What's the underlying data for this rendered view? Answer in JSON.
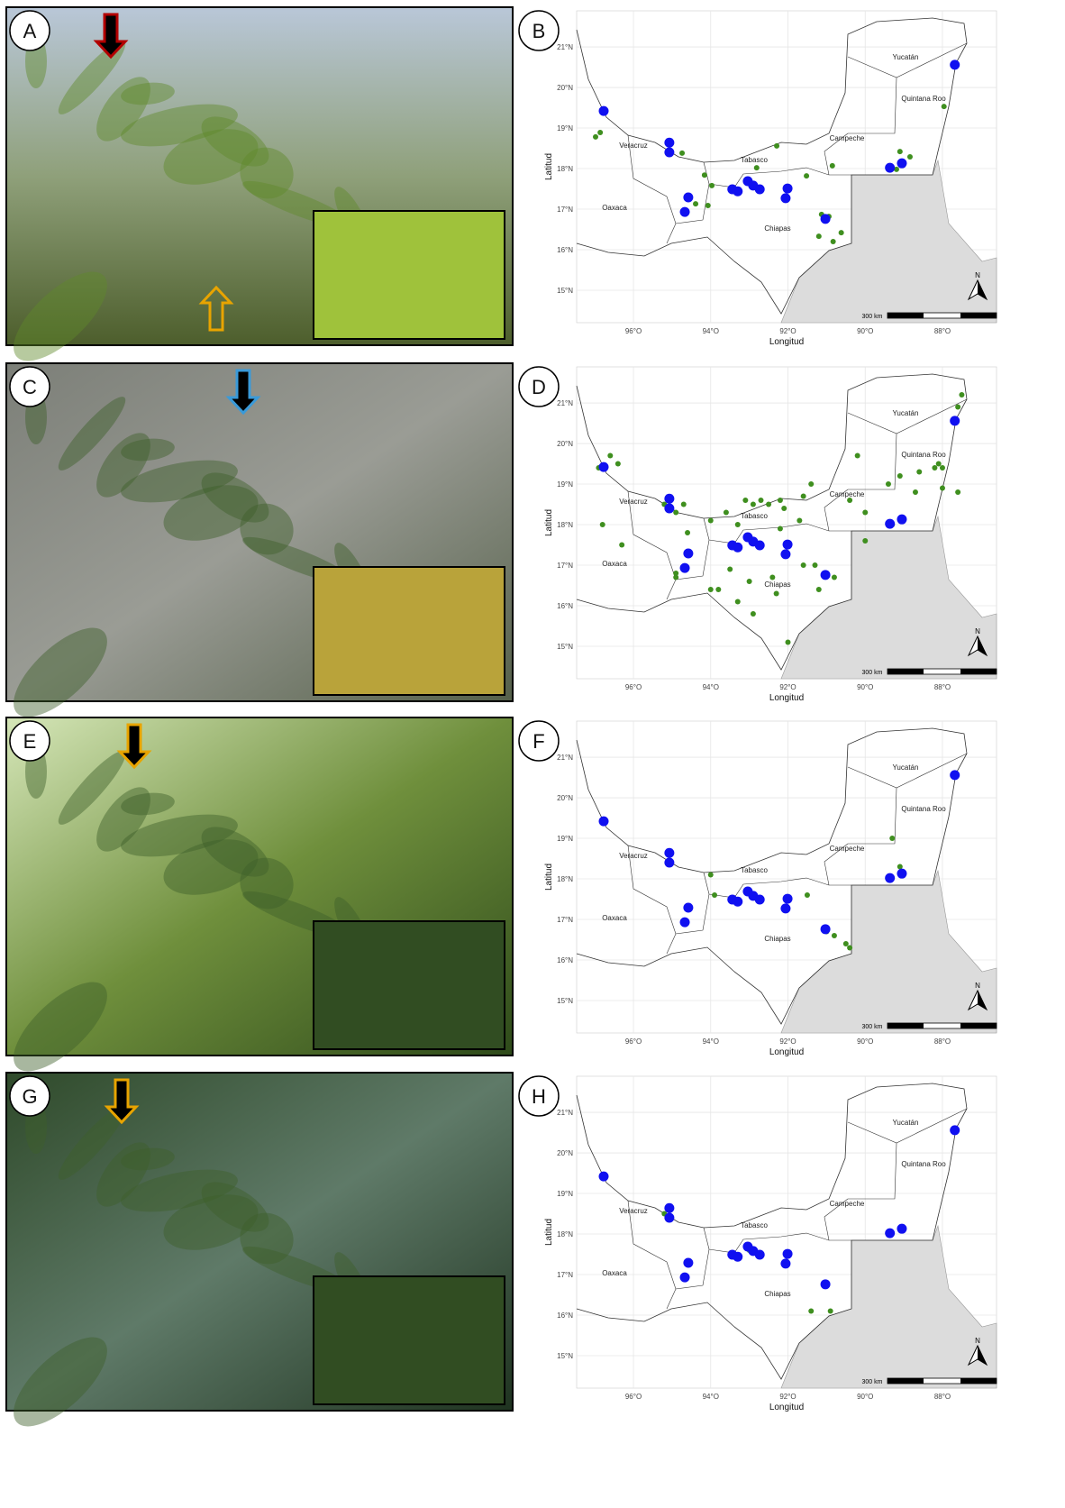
{
  "photo_panels": [
    "A",
    "C",
    "E",
    "G"
  ],
  "map_axes": {
    "xlabel": "Longitud",
    "ylabel": "Latitud",
    "xlim": [
      -97.47,
      -86.6
    ],
    "ylim": [
      14.2,
      21.89
    ],
    "xticks": [
      {
        "value": -96,
        "label": "96°O"
      },
      {
        "value": -94,
        "label": "94°O"
      },
      {
        "value": -92,
        "label": "92°O"
      },
      {
        "value": -90,
        "label": "90°O"
      },
      {
        "value": -88,
        "label": "88°O"
      }
    ],
    "yticks": [
      {
        "value": 15,
        "label": "15°N"
      },
      {
        "value": 16,
        "label": "16°N"
      },
      {
        "value": 17,
        "label": "17°N"
      },
      {
        "value": 18,
        "label": "18°N"
      },
      {
        "value": 19,
        "label": "19°N"
      },
      {
        "value": 20,
        "label": "20°N"
      },
      {
        "value": 21,
        "label": "21°N"
      }
    ],
    "grid": true
  },
  "state_names": [
    "Yucatán",
    "Quintana Roo",
    "Campeche",
    "Tabasco",
    "Veracruz",
    "Oaxaca",
    "Chiapas"
  ],
  "scale_label": "300 km",
  "north_label": "N",
  "colors": {
    "blue": "#1010f0",
    "green": "#3f8f1f"
  },
  "maps": [
    {
      "letter": "B",
      "blue": {
        "x": [
          -96.77,
          -95.07,
          -95.07,
          -94.58,
          -94.67,
          -93.44,
          -93.3,
          -93.04,
          -92.9,
          -92.73,
          -92.01,
          -92.06,
          -91.03,
          -89.36,
          -89.05,
          -87.68
        ],
        "y": [
          19.42,
          18.64,
          18.4,
          17.29,
          16.93,
          17.49,
          17.44,
          17.69,
          17.58,
          17.49,
          17.51,
          17.27,
          16.76,
          18.02,
          18.13,
          20.56
        ]
      },
      "green": {
        "x": [
          -96.98,
          -96.86,
          -94.74,
          -94.16,
          -93.97,
          -94.39,
          -94.07,
          -92.81,
          -92.29,
          -91.52,
          -90.85,
          -91.13,
          -90.94,
          -91.2,
          -90.83,
          -90.62,
          -89.1,
          -88.84,
          -87.96,
          -89.19
        ],
        "y": [
          18.78,
          18.89,
          18.38,
          17.84,
          17.58,
          17.13,
          17.09,
          18.02,
          18.56,
          17.82,
          18.07,
          16.87,
          16.82,
          16.33,
          16.2,
          16.42,
          18.42,
          18.29,
          19.53,
          17.98
        ]
      }
    },
    {
      "letter": "D",
      "blue": {
        "x": [
          -96.77,
          -95.07,
          -95.07,
          -94.58,
          -94.67,
          -93.44,
          -93.3,
          -93.04,
          -92.9,
          -92.73,
          -92.01,
          -92.06,
          -91.03,
          -89.36,
          -89.05,
          -87.68
        ],
        "y": [
          19.42,
          18.64,
          18.4,
          17.29,
          16.93,
          17.49,
          17.44,
          17.69,
          17.58,
          17.49,
          17.51,
          17.27,
          16.76,
          18.02,
          18.13,
          20.56
        ]
      },
      "green": {
        "x": [
          -96.9,
          -96.6,
          -96.4,
          -96.8,
          -96.3,
          -95.2,
          -94.9,
          -94.7,
          -94.6,
          -94.9,
          -94.9,
          -94.0,
          -93.6,
          -93.3,
          -93.1,
          -92.9,
          -92.7,
          -92.5,
          -92.2,
          -92.1,
          -92.2,
          -91.6,
          -91.4,
          -91.7,
          -93.5,
          -93.8,
          -94.0,
          -93.3,
          -92.9,
          -93.0,
          -92.4,
          -92.3,
          -91.6,
          -91.3,
          -90.8,
          -91.2,
          -92.0,
          -90.2,
          -90.4,
          -90.0,
          -90.0,
          -89.4,
          -89.1,
          -88.6,
          -88.2,
          -88.0,
          -87.6,
          -87.5,
          -88.0,
          -89.3,
          -87.6,
          -88.1,
          -88.7
        ],
        "y": [
          19.4,
          19.7,
          19.5,
          18.0,
          17.5,
          18.5,
          18.3,
          18.5,
          17.8,
          16.8,
          16.7,
          18.1,
          18.3,
          18.0,
          18.6,
          18.5,
          18.6,
          18.5,
          18.6,
          18.4,
          17.9,
          18.7,
          19.0,
          18.1,
          16.9,
          16.4,
          16.4,
          16.1,
          15.8,
          16.6,
          16.7,
          16.3,
          17.0,
          17.0,
          16.7,
          16.4,
          15.1,
          19.7,
          18.6,
          18.3,
          17.6,
          19.0,
          19.2,
          19.3,
          19.4,
          19.4,
          20.9,
          21.2,
          18.9,
          18.0,
          18.8,
          19.5,
          18.8
        ]
      }
    },
    {
      "letter": "F",
      "blue": {
        "x": [
          -96.77,
          -95.07,
          -95.07,
          -94.58,
          -94.67,
          -93.44,
          -93.3,
          -93.04,
          -92.9,
          -92.73,
          -92.01,
          -92.06,
          -91.03,
          -89.36,
          -89.05,
          -87.68
        ],
        "y": [
          19.42,
          18.64,
          18.4,
          17.29,
          16.93,
          17.49,
          17.44,
          17.69,
          17.58,
          17.49,
          17.51,
          17.27,
          16.76,
          18.02,
          18.13,
          20.56
        ]
      },
      "green": {
        "x": [
          -94.0,
          -93.9,
          -92.8,
          -91.5,
          -91.0,
          -90.8,
          -90.5,
          -90.4,
          -89.1,
          -89.3
        ],
        "y": [
          18.1,
          17.6,
          17.5,
          17.6,
          16.7,
          16.6,
          16.4,
          16.3,
          18.3,
          19.0
        ]
      }
    },
    {
      "letter": "H",
      "blue": {
        "x": [
          -96.77,
          -95.07,
          -95.07,
          -94.58,
          -94.67,
          -93.44,
          -93.3,
          -93.04,
          -92.9,
          -92.73,
          -92.01,
          -92.06,
          -91.03,
          -89.36,
          -89.05,
          -87.68
        ],
        "y": [
          19.42,
          18.64,
          18.4,
          17.29,
          16.93,
          17.49,
          17.44,
          17.69,
          17.58,
          17.49,
          17.51,
          17.27,
          16.76,
          18.02,
          18.13,
          20.56
        ]
      },
      "green": {
        "x": [
          -95.1,
          -95.2,
          -94.7,
          -94.6,
          -93.0,
          -91.4,
          -90.9,
          -92.0
        ],
        "y": [
          18.6,
          18.5,
          16.9,
          17.3,
          17.6,
          16.1,
          16.1,
          17.5
        ]
      }
    }
  ]
}
